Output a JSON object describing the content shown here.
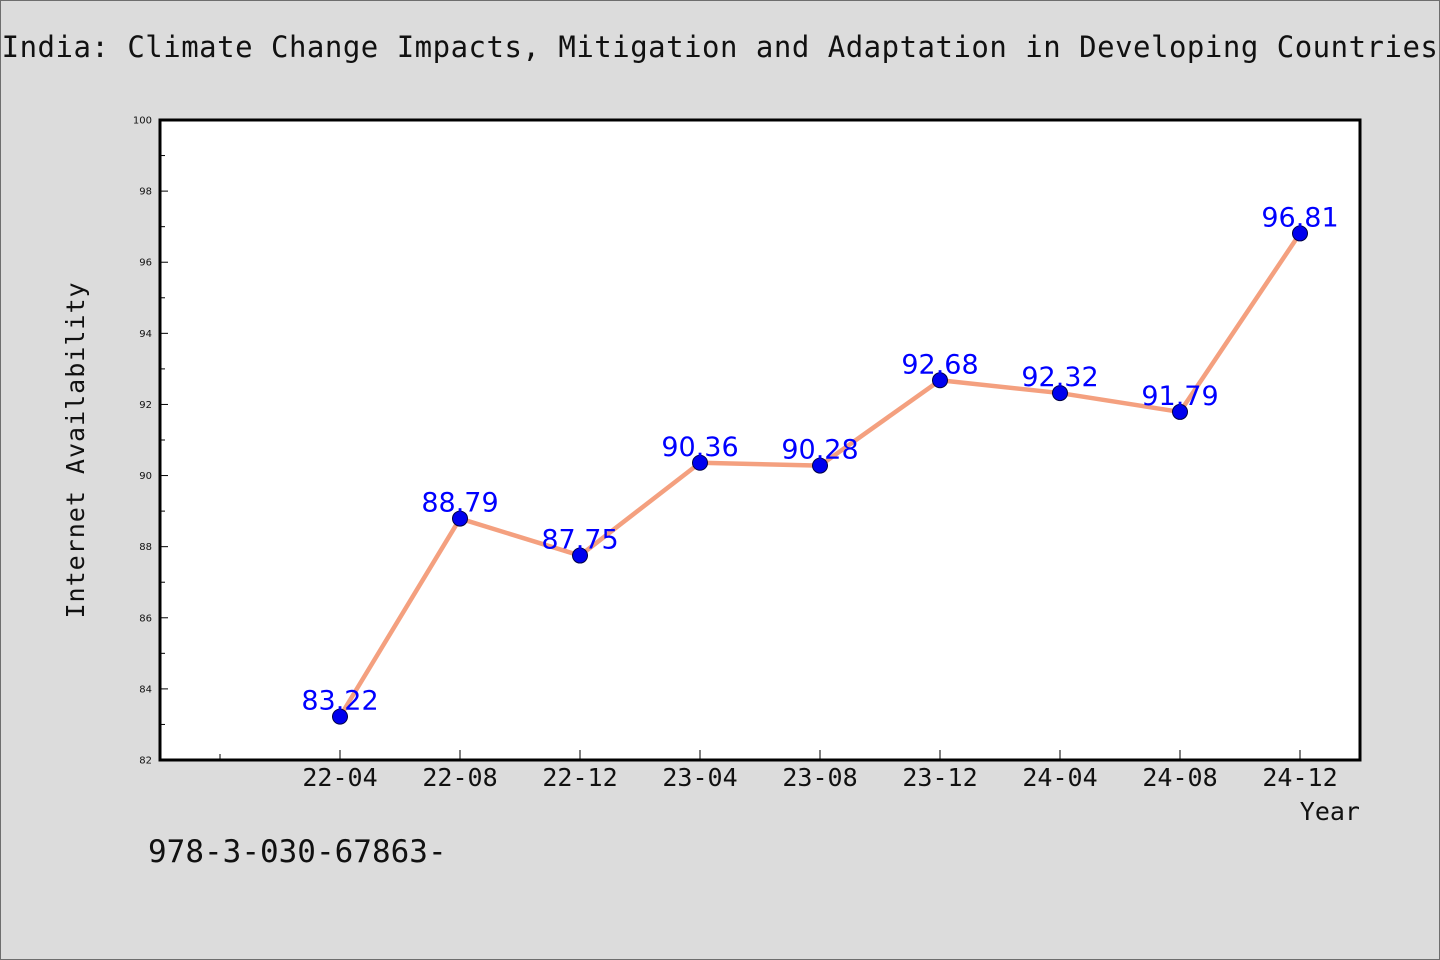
{
  "chart_data": {
    "type": "line",
    "title": "India: Climate Change Impacts, Mitigation and Adaptation in Developing Countries",
    "xlabel": "Year",
    "ylabel": "Internet Availability",
    "categories": [
      "22-04",
      "22-08",
      "22-12",
      "23-04",
      "23-08",
      "23-12",
      "24-04",
      "24-08",
      "24-12"
    ],
    "series": [
      {
        "values": [
          83.22,
          88.79,
          87.75,
          90.36,
          90.28,
          92.68,
          92.32,
          91.79,
          96.81
        ]
      }
    ],
    "data_labels": [
      "83.22",
      "88.79",
      "87.75",
      "90.36",
      "90.28",
      "92.68",
      "92.32",
      "91.79",
      "96.81"
    ],
    "ylim": [
      82,
      100
    ],
    "yticks": [
      "82",
      "84",
      "86",
      "88",
      "90",
      "92",
      "94",
      "96",
      "98",
      "100"
    ],
    "grid": false,
    "colors": {
      "line": "#f4a07f",
      "marker": "#0000ee",
      "label": "#0000ff"
    }
  },
  "footer": {
    "note": "978-3-030-67863-"
  }
}
